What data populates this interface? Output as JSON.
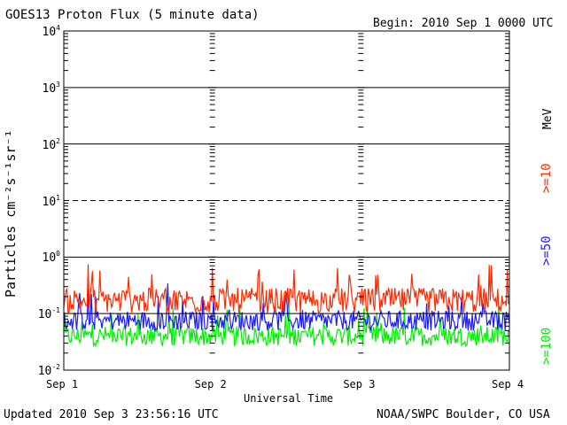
{
  "header": {
    "title": "GOES13 Proton Flux (5 minute data)",
    "begin": "Begin: 2010 Sep 1 0000 UTC"
  },
  "footer": {
    "updated": "Updated 2010 Sep  3 23:56:16 UTC",
    "source": "NOAA/SWPC Boulder, CO USA"
  },
  "chart_data": {
    "type": "line",
    "title": "GOES13 Proton Flux (5 minute data)",
    "xlabel": "Universal Time",
    "ylabel": "Particles cm⁻²s⁻¹sr⁻¹",
    "yscale": "log",
    "ylim": [
      0.01,
      10000
    ],
    "xlim": [
      "2010-09-01",
      "2010-09-04"
    ],
    "x_ticks": [
      "Sep 1",
      "Sep 2",
      "Sep 3",
      "Sep 4"
    ],
    "y_ticks": [
      {
        "base": "10",
        "exp": "4"
      },
      {
        "base": "10",
        "exp": "3"
      },
      {
        "base": "10",
        "exp": "2"
      },
      {
        "base": "10",
        "exp": "1"
      },
      {
        "base": "10",
        "exp": "0"
      },
      {
        "base": "10",
        "exp": "-1"
      },
      {
        "base": "10",
        "exp": "-2"
      }
    ],
    "legend": {
      "unit": "MeV",
      "placement": "right",
      "entries": [
        {
          "label": ">=10",
          "color": "#ff2a00"
        },
        {
          "label": ">=50",
          "color": "#1a1aff"
        },
        {
          "label": ">=100",
          "color": "#00ee00"
        }
      ]
    },
    "series": [
      {
        "name": ">=10 MeV",
        "color": "#ff2a00",
        "level": 0.17,
        "spread": 0.45
      },
      {
        "name": ">=50 MeV",
        "color": "#1a1aff",
        "level": 0.075,
        "spread": 0.35
      },
      {
        "name": ">=100 MeV",
        "color": "#00ee00",
        "level": 0.04,
        "spread": 0.35
      }
    ],
    "reference_lines": [
      1000,
      100,
      10,
      1,
      0.1
    ],
    "dashed_lines": [
      10
    ]
  }
}
